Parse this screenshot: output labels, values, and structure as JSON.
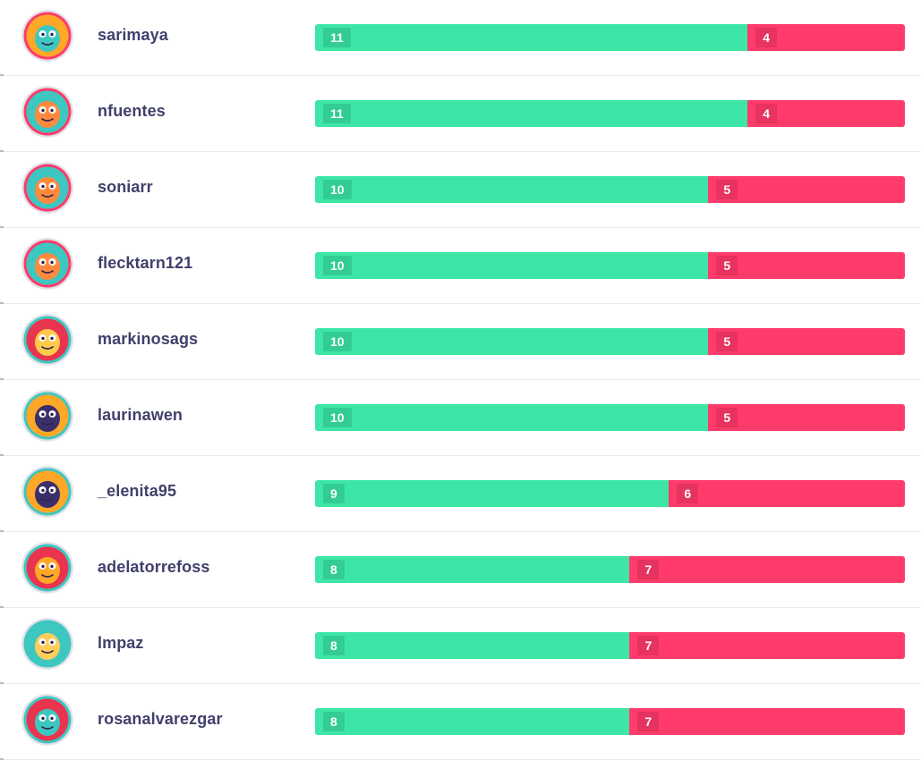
{
  "leaderboard": {
    "rows": [
      {
        "username": "sarimaya",
        "correct": "11",
        "wrong": "4",
        "avatar": "orange-dinosaur-avatar-icon",
        "ring": "#ff3b6b",
        "bg": "#ffa726",
        "char": "#3ec7c0"
      },
      {
        "username": "nfuentes",
        "correct": "11",
        "wrong": "4",
        "avatar": "orange-fish-monster-avatar-icon",
        "ring": "#ff3b6b",
        "bg": "#3ec7c0",
        "char": "#ff8a3d"
      },
      {
        "username": "soniarr",
        "correct": "10",
        "wrong": "5",
        "avatar": "orange-fish-monster-avatar-icon",
        "ring": "#ff3b6b",
        "bg": "#3ec7c0",
        "char": "#ff8a3d"
      },
      {
        "username": "flecktarn121",
        "correct": "10",
        "wrong": "5",
        "avatar": "orange-popsicle-monster-avatar-icon",
        "ring": "#ff3b6b",
        "bg": "#3ec7c0",
        "char": "#ff8a3d"
      },
      {
        "username": "markinosags",
        "correct": "10",
        "wrong": "5",
        "avatar": "yellow-pear-monster-avatar-icon",
        "ring": "#3ec7c0",
        "bg": "#e8344f",
        "char": "#ffc94a"
      },
      {
        "username": "laurinawen",
        "correct": "10",
        "wrong": "5",
        "avatar": "penguin-avatar-icon",
        "ring": "#3ec7c0",
        "bg": "#ffa726",
        "char": "#3b2f6b"
      },
      {
        "username": "_elenita95",
        "correct": "9",
        "wrong": "6",
        "avatar": "penguin-avatar-icon",
        "ring": "#3ec7c0",
        "bg": "#ffa726",
        "char": "#3b2f6b"
      },
      {
        "username": "adelatorrefoss",
        "correct": "8",
        "wrong": "7",
        "avatar": "orange-robot-avatar-icon",
        "ring": "#3ec7c0",
        "bg": "#e8344f",
        "char": "#ffa726"
      },
      {
        "username": "lmpaz",
        "correct": "8",
        "wrong": "7",
        "avatar": "yellow-chameleon-avatar-icon",
        "ring": "#3ec7c0",
        "bg": "#3ec7c0",
        "char": "#ffcd5a"
      },
      {
        "username": "rosanalvarezgar",
        "correct": "8",
        "wrong": "7",
        "avatar": "teal-dragon-avatar-icon",
        "ring": "#3ec7c0",
        "bg": "#e8344f",
        "char": "#3ec7c0"
      }
    ],
    "total_questions": 15
  },
  "colors": {
    "correct": "#3de6a6",
    "wrong": "#ff3b6b",
    "username": "#40406b"
  }
}
